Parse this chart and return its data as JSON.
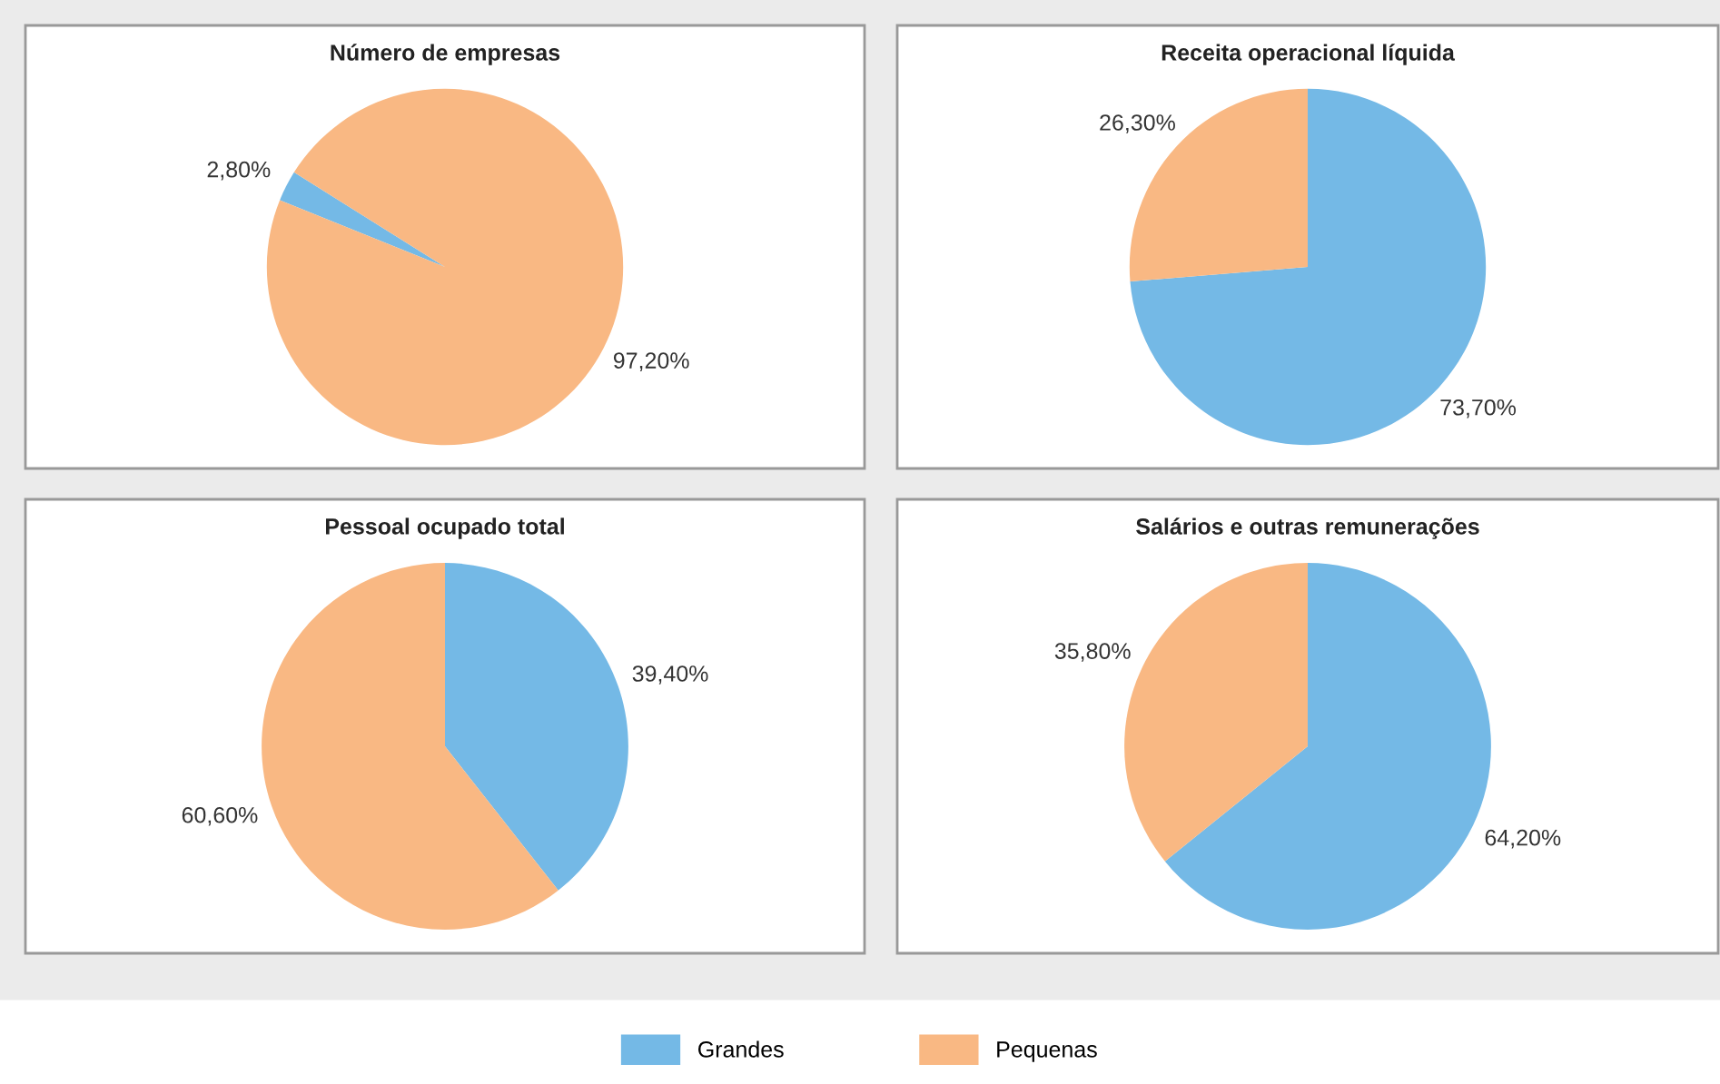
{
  "chart_data": [
    {
      "type": "pie",
      "title": "Número de empresas",
      "categories": [
        "Grandes",
        "Pequenas"
      ],
      "values": [
        2.8,
        97.2
      ],
      "colors": [
        "#74b9e6",
        "#f9b883"
      ],
      "value_labels": [
        "2,80%",
        "97,20%"
      ],
      "legend": "bottom"
    },
    {
      "type": "pie",
      "title": "Receita operacional líquida",
      "categories": [
        null,
        null
      ],
      "values": [
        73.7,
        26.3
      ],
      "colors": [
        "#74b9e6",
        "#f9b883"
      ],
      "value_labels": [
        "73,70%",
        "26,30%"
      ]
    },
    {
      "type": "pie",
      "title": "Pessoal ocupado total",
      "categories": [
        null,
        null
      ],
      "values": [
        39.4,
        60.6
      ],
      "colors": [
        "#74b9e6",
        "#f9b883"
      ],
      "value_labels": [
        "39,40%",
        "60,60%"
      ]
    },
    {
      "type": "pie",
      "title": "Salários e outras remunerações",
      "categories": [
        null,
        null
      ],
      "values": [
        64.2,
        35.8
      ],
      "colors": [
        "#74b9e6",
        "#f9b883"
      ],
      "value_labels": [
        "64,20%",
        "35,80%"
      ]
    }
  ]
}
